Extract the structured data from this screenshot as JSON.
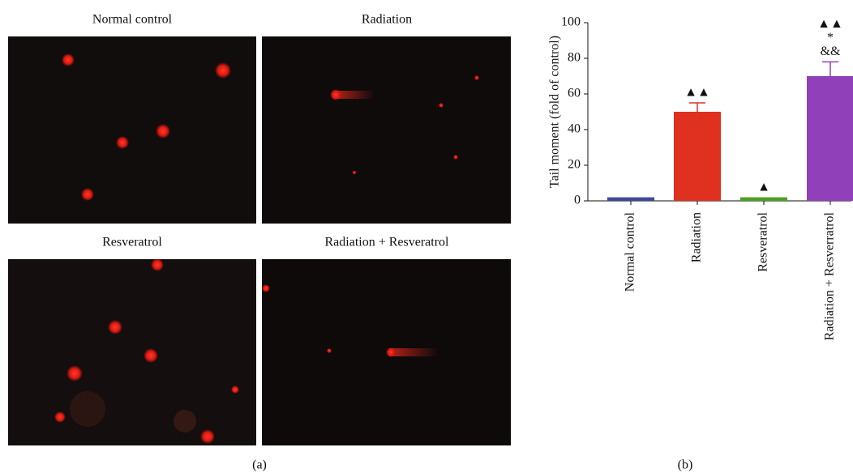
{
  "panel_a": {
    "images": [
      "Normal control",
      "Radiation",
      "Resveratrol",
      "Radiation + Resveratrol"
    ],
    "label": "(a)"
  },
  "panel_b": {
    "label": "(b)"
  },
  "chart_data": {
    "type": "bar",
    "y_label": "Tail moment (fold of control)",
    "categories": [
      "Normal control",
      "Radiation",
      "Resveratrol",
      "Radiation + Resverratrol"
    ],
    "values": [
      2,
      50,
      2,
      70
    ],
    "errors": [
      null,
      5,
      null,
      8
    ],
    "colors": [
      "#3b4a9a",
      "#e03020",
      "#4aa020",
      "#9040b8"
    ],
    "ylim": [
      0,
      100
    ],
    "yticks": [
      0,
      20,
      40,
      60,
      80,
      100
    ],
    "annotations": [
      {
        "category": "Radiation",
        "text": "▲▲"
      },
      {
        "category": "Resveratrol",
        "text": "▲"
      },
      {
        "category": "Radiation + Resverratrol",
        "text": "&&"
      },
      {
        "category": "Radiation + Resverratrol",
        "text": "*"
      },
      {
        "category": "Radiation + Resverratrol",
        "text": "▲▲"
      }
    ]
  }
}
